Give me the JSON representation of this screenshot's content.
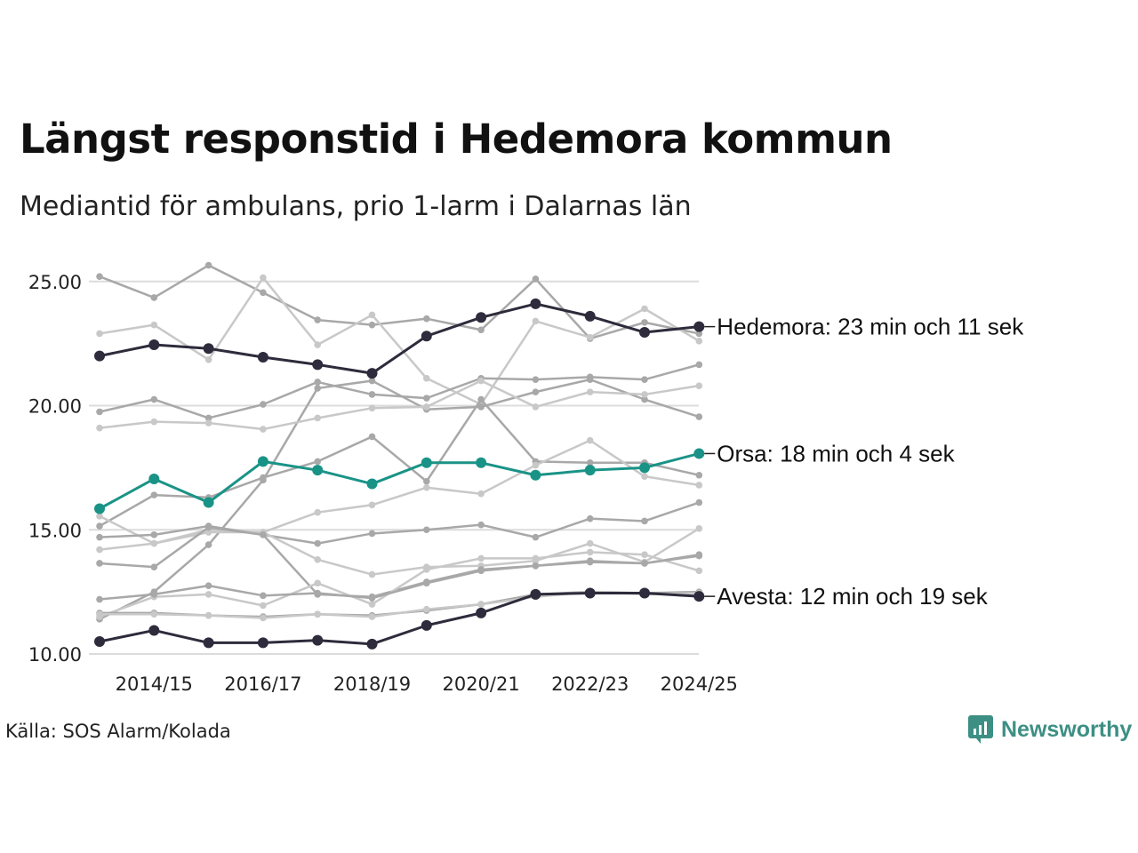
{
  "chart_data": {
    "type": "line",
    "title": "Längst responstid i Hedemora kommun",
    "subtitle": "Mediantid för ambulans, prio 1-larm i Dalarnas län",
    "x": [
      "2013/14",
      "2014/15",
      "2015/16",
      "2016/17",
      "2017/18",
      "2018/19",
      "2019/20",
      "2020/21",
      "2021/22",
      "2022/23",
      "2023/24",
      "2024/25"
    ],
    "x_tick_labels": [
      "2014/15",
      "2016/17",
      "2018/19",
      "2020/21",
      "2022/23",
      "2024/25"
    ],
    "y_ticks": [
      "10.00",
      "15.00",
      "20.00",
      "25.00"
    ],
    "ylim": [
      9.5,
      26.5
    ],
    "highlighted": [
      {
        "name": "Hedemora",
        "label": "Hedemora: 23 min och 11 sek",
        "color": "#2e2b3c",
        "values": [
          22.0,
          22.45,
          22.3,
          21.95,
          21.65,
          21.3,
          22.8,
          23.55,
          24.1,
          23.6,
          22.95,
          23.18
        ]
      },
      {
        "name": "Orsa",
        "label": "Orsa: 18 min och 4 sek",
        "color": "#1a9387",
        "values": [
          15.85,
          17.05,
          16.1,
          17.75,
          17.4,
          16.85,
          17.7,
          17.7,
          17.2,
          17.4,
          17.5,
          18.07
        ]
      },
      {
        "name": "Avesta",
        "label": "Avesta: 12 min och 19 sek",
        "color": "#2e2b3c",
        "values": [
          10.5,
          10.95,
          10.45,
          10.45,
          10.55,
          10.4,
          11.15,
          11.65,
          12.4,
          12.45,
          12.45,
          12.32
        ]
      }
    ],
    "background_series": [
      {
        "color": "#a8a8a8",
        "values": [
          25.2,
          24.35,
          25.65,
          24.55,
          23.45,
          23.25,
          23.5,
          23.05,
          25.1,
          22.7,
          23.35,
          22.9
        ]
      },
      {
        "color": "#c8c8c8",
        "values": [
          22.9,
          23.25,
          21.85,
          25.15,
          22.45,
          23.65,
          21.1,
          20.05,
          23.4,
          22.75,
          23.9,
          22.6
        ]
      },
      {
        "color": "#a8a8a8",
        "values": [
          19.75,
          20.25,
          19.5,
          20.05,
          20.95,
          20.45,
          20.3,
          21.1,
          21.05,
          21.15,
          21.05,
          21.65
        ]
      },
      {
        "color": "#a8a8a8",
        "values": [
          15.15,
          16.4,
          16.3,
          17.1,
          17.75,
          18.75,
          16.95,
          20.25,
          17.75,
          17.7,
          17.7,
          17.2
        ]
      },
      {
        "color": "#a8a8a8",
        "values": [
          11.4,
          12.5,
          14.4,
          17.0,
          20.7,
          21.0,
          19.85,
          19.95,
          20.55,
          21.05,
          20.25,
          19.55
        ]
      },
      {
        "color": "#c8c8c8",
        "values": [
          19.1,
          19.35,
          19.3,
          19.05,
          19.5,
          19.9,
          19.95,
          21.0,
          19.95,
          20.55,
          20.45,
          20.8
        ]
      },
      {
        "color": "#c8c8c8",
        "values": [
          15.55,
          14.45,
          15.0,
          14.9,
          15.7,
          16.0,
          16.7,
          16.45,
          17.6,
          18.6,
          17.15,
          16.8
        ]
      },
      {
        "color": "#a8a8a8",
        "values": [
          14.7,
          14.8,
          15.15,
          14.8,
          14.45,
          14.85,
          15.0,
          15.2,
          14.7,
          15.45,
          15.35,
          16.1
        ]
      },
      {
        "color": "#c8c8c8",
        "values": [
          14.2,
          14.45,
          14.9,
          14.9,
          13.8,
          13.2,
          13.5,
          13.55,
          13.75,
          14.45,
          13.7,
          15.05
        ]
      },
      {
        "color": "#a8a8a8",
        "values": [
          13.65,
          13.5,
          15.1,
          14.8,
          12.4,
          12.3,
          12.9,
          13.4,
          13.55,
          13.75,
          13.65,
          14.0
        ]
      },
      {
        "color": "#c8c8c8",
        "values": [
          11.5,
          12.3,
          12.4,
          11.95,
          12.85,
          12.0,
          13.4,
          13.85,
          13.85,
          14.1,
          14.0,
          13.35
        ]
      },
      {
        "color": "#a8a8a8",
        "values": [
          12.2,
          12.4,
          12.75,
          12.35,
          12.45,
          12.25,
          12.85,
          13.35,
          13.55,
          13.7,
          13.65,
          13.95
        ]
      },
      {
        "color": "#a8a8a8",
        "values": [
          11.65,
          11.65,
          11.55,
          11.5,
          11.6,
          11.55,
          11.75,
          12.0,
          12.4,
          12.5,
          12.45,
          12.5
        ]
      },
      {
        "color": "#c8c8c8",
        "values": [
          11.6,
          11.6,
          11.55,
          11.45,
          11.6,
          11.5,
          11.8,
          12.0,
          12.3,
          12.5,
          12.4,
          12.45
        ]
      }
    ]
  },
  "source": "Källa: SOS Alarm/Kolada",
  "brand": "Newsworthy",
  "brand_color": "#3d8f84"
}
